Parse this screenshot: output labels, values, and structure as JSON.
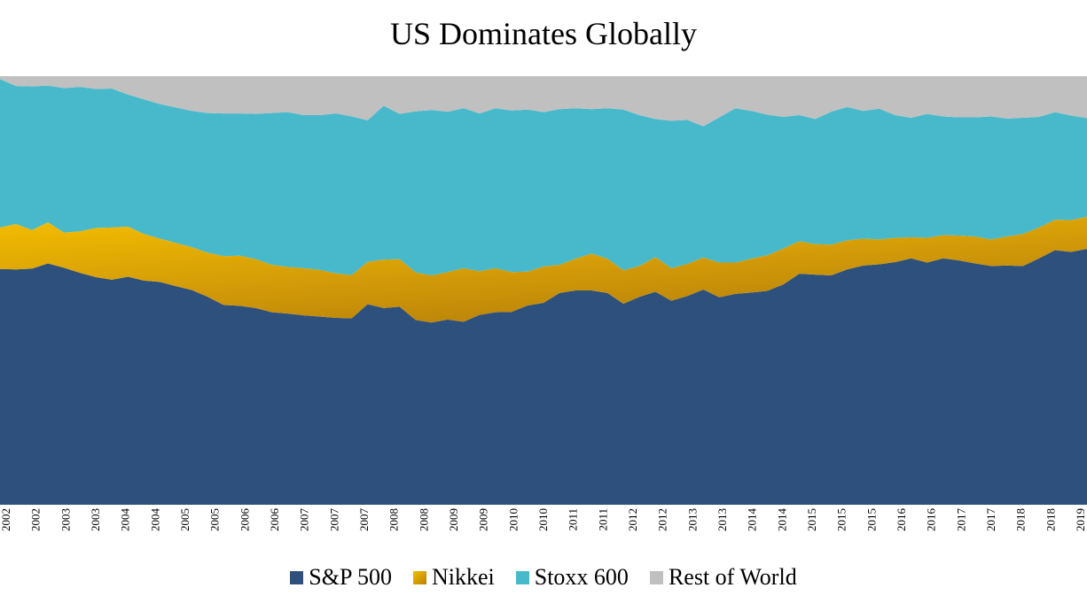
{
  "chart_data": {
    "type": "area",
    "stacked": true,
    "normalized": true,
    "title": "US Dominates Globally",
    "xlabel": "",
    "ylabel": "",
    "ylim": [
      0,
      1
    ],
    "grid": false,
    "legend_position": "bottom",
    "x_tick_labels": [
      "2002",
      "2002",
      "2003",
      "2003",
      "2004",
      "2004",
      "2005",
      "2005",
      "2006",
      "2006",
      "2007",
      "2007",
      "2007",
      "2008",
      "2008",
      "2009",
      "2009",
      "2010",
      "2010",
      "2011",
      "2011",
      "2012",
      "2012",
      "2013",
      "2013",
      "2014",
      "2014",
      "2015",
      "2015",
      "2015",
      "2016",
      "2016",
      "2017",
      "2017",
      "2018",
      "2018",
      "2019"
    ],
    "series": [
      {
        "name": "S&P 500",
        "color": "#2e507d",
        "values": [
          0.55,
          0.549,
          0.551,
          0.563,
          0.553,
          0.541,
          0.531,
          0.525,
          0.532,
          0.523,
          0.52,
          0.51,
          0.501,
          0.485,
          0.466,
          0.464,
          0.459,
          0.449,
          0.446,
          0.442,
          0.439,
          0.436,
          0.435,
          0.468,
          0.459,
          0.462,
          0.431,
          0.425,
          0.432,
          0.427,
          0.443,
          0.449,
          0.45,
          0.465,
          0.471,
          0.494,
          0.5,
          0.5,
          0.494,
          0.469,
          0.485,
          0.497,
          0.476,
          0.487,
          0.502,
          0.484,
          0.492,
          0.495,
          0.499,
          0.514,
          0.539,
          0.537,
          0.535,
          0.549,
          0.558,
          0.561,
          0.566,
          0.575,
          0.565,
          0.575,
          0.57,
          0.563,
          0.557,
          0.558,
          0.557,
          0.575,
          0.594,
          0.59,
          0.597
        ]
      },
      {
        "name": "Nikkei",
        "color": "#e8b000",
        "values": [
          0.097,
          0.106,
          0.09,
          0.096,
          0.082,
          0.097,
          0.115,
          0.122,
          0.117,
          0.109,
          0.101,
          0.101,
          0.1,
          0.103,
          0.114,
          0.117,
          0.114,
          0.111,
          0.109,
          0.11,
          0.109,
          0.104,
          0.101,
          0.099,
          0.113,
          0.111,
          0.111,
          0.11,
          0.111,
          0.125,
          0.102,
          0.103,
          0.093,
          0.079,
          0.085,
          0.066,
          0.074,
          0.086,
          0.08,
          0.078,
          0.072,
          0.081,
          0.076,
          0.075,
          0.075,
          0.081,
          0.073,
          0.079,
          0.083,
          0.084,
          0.076,
          0.071,
          0.072,
          0.068,
          0.063,
          0.058,
          0.057,
          0.049,
          0.058,
          0.054,
          0.058,
          0.063,
          0.062,
          0.068,
          0.075,
          0.072,
          0.071,
          0.074,
          0.075
        ]
      },
      {
        "name": "Stoxx 600",
        "color": "#47b9cb",
        "values": [
          0.346,
          0.322,
          0.335,
          0.319,
          0.337,
          0.337,
          0.324,
          0.324,
          0.308,
          0.314,
          0.314,
          0.316,
          0.318,
          0.326,
          0.333,
          0.332,
          0.339,
          0.354,
          0.361,
          0.357,
          0.361,
          0.373,
          0.37,
          0.33,
          0.359,
          0.339,
          0.376,
          0.386,
          0.374,
          0.373,
          0.368,
          0.373,
          0.377,
          0.378,
          0.36,
          0.363,
          0.351,
          0.337,
          0.351,
          0.375,
          0.352,
          0.322,
          0.344,
          0.336,
          0.306,
          0.339,
          0.36,
          0.345,
          0.328,
          0.307,
          0.294,
          0.292,
          0.31,
          0.311,
          0.298,
          0.305,
          0.286,
          0.279,
          0.289,
          0.277,
          0.276,
          0.278,
          0.287,
          0.275,
          0.271,
          0.258,
          0.251,
          0.244,
          0.23
        ]
      },
      {
        "name": "Rest of World",
        "color": "#c0c0c0",
        "values": [
          0.007,
          0.023,
          0.024,
          0.022,
          0.028,
          0.025,
          0.03,
          0.029,
          0.043,
          0.054,
          0.065,
          0.073,
          0.081,
          0.086,
          0.087,
          0.087,
          0.088,
          0.086,
          0.084,
          0.091,
          0.091,
          0.087,
          0.094,
          0.103,
          0.069,
          0.088,
          0.082,
          0.079,
          0.083,
          0.075,
          0.087,
          0.075,
          0.08,
          0.078,
          0.084,
          0.077,
          0.075,
          0.077,
          0.075,
          0.078,
          0.091,
          0.1,
          0.104,
          0.102,
          0.117,
          0.096,
          0.075,
          0.081,
          0.09,
          0.095,
          0.091,
          0.1,
          0.083,
          0.072,
          0.081,
          0.076,
          0.091,
          0.097,
          0.088,
          0.094,
          0.096,
          0.096,
          0.094,
          0.099,
          0.097,
          0.095,
          0.084,
          0.092,
          0.098
        ]
      }
    ]
  }
}
